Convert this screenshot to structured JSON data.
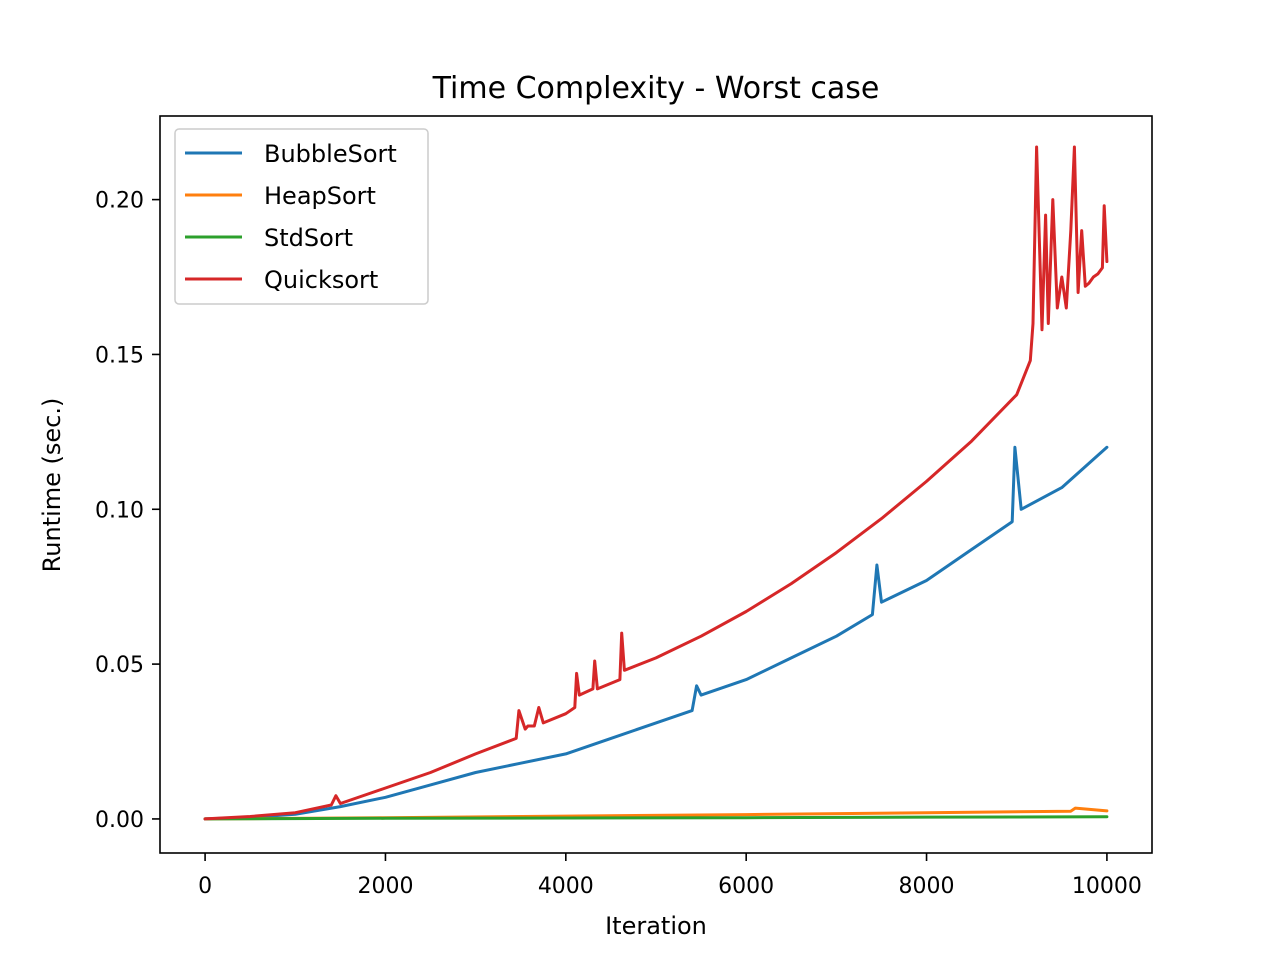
{
  "chart_data": {
    "type": "line",
    "title": "Time Complexity - Worst case",
    "xlabel": "Iteration",
    "ylabel": "Runtime (sec.)",
    "xlim": [
      -500,
      10500
    ],
    "ylim": [
      -0.011,
      0.227
    ],
    "xticks": [
      0,
      2000,
      4000,
      6000,
      8000,
      10000
    ],
    "xtick_labels": [
      "0",
      "2000",
      "4000",
      "6000",
      "8000",
      "10000"
    ],
    "yticks": [
      0.0,
      0.05,
      0.1,
      0.15,
      0.2
    ],
    "ytick_labels": [
      "0.00",
      "0.05",
      "0.10",
      "0.15",
      "0.20"
    ],
    "grid": false,
    "legend_position": "top-left",
    "series": [
      {
        "name": "BubbleSort",
        "color": "#1f77b4",
        "x": [
          0,
          500,
          1000,
          1500,
          2000,
          2500,
          3000,
          3500,
          4000,
          4500,
          5000,
          5400,
          5450,
          5500,
          6000,
          6500,
          7000,
          7400,
          7450,
          7500,
          8000,
          8500,
          8950,
          8980,
          9050,
          9500,
          10000
        ],
        "y": [
          0.0,
          0.0005,
          0.0015,
          0.004,
          0.007,
          0.011,
          0.015,
          0.018,
          0.021,
          0.026,
          0.031,
          0.035,
          0.043,
          0.04,
          0.045,
          0.052,
          0.059,
          0.066,
          0.082,
          0.07,
          0.077,
          0.087,
          0.096,
          0.12,
          0.1,
          0.107,
          0.12
        ]
      },
      {
        "name": "HeapSort",
        "color": "#ff7f0e",
        "x": [
          0,
          2000,
          4000,
          6000,
          8000,
          9600,
          9650,
          10000
        ],
        "y": [
          0.0,
          0.0004,
          0.0009,
          0.0014,
          0.002,
          0.0025,
          0.0035,
          0.0026
        ]
      },
      {
        "name": "StdSort",
        "color": "#2ca02c",
        "x": [
          0,
          2000,
          4000,
          6000,
          8000,
          10000
        ],
        "y": [
          0.0,
          0.0002,
          0.0003,
          0.0004,
          0.0006,
          0.0007
        ]
      },
      {
        "name": "Quicksort",
        "color": "#d62728",
        "x": [
          0,
          500,
          1000,
          1400,
          1450,
          1500,
          2000,
          2500,
          3000,
          3450,
          3480,
          3550,
          3580,
          3650,
          3700,
          3750,
          4000,
          4100,
          4120,
          4150,
          4300,
          4320,
          4350,
          4600,
          4620,
          4650,
          5000,
          5500,
          6000,
          6500,
          7000,
          7500,
          8000,
          8500,
          9000,
          9150,
          9180,
          9220,
          9280,
          9320,
          9350,
          9400,
          9450,
          9500,
          9550,
          9600,
          9640,
          9680,
          9720,
          9760,
          9800,
          9850,
          9900,
          9950,
          9970,
          10000
        ],
        "y": [
          0.0,
          0.0008,
          0.002,
          0.0045,
          0.0075,
          0.005,
          0.01,
          0.015,
          0.021,
          0.026,
          0.035,
          0.029,
          0.03,
          0.03,
          0.036,
          0.031,
          0.034,
          0.036,
          0.047,
          0.04,
          0.042,
          0.051,
          0.042,
          0.045,
          0.06,
          0.048,
          0.052,
          0.059,
          0.067,
          0.076,
          0.086,
          0.097,
          0.109,
          0.122,
          0.137,
          0.148,
          0.16,
          0.217,
          0.158,
          0.195,
          0.16,
          0.2,
          0.165,
          0.175,
          0.165,
          0.19,
          0.217,
          0.17,
          0.19,
          0.172,
          0.173,
          0.175,
          0.176,
          0.178,
          0.198,
          0.18
        ]
      }
    ]
  }
}
